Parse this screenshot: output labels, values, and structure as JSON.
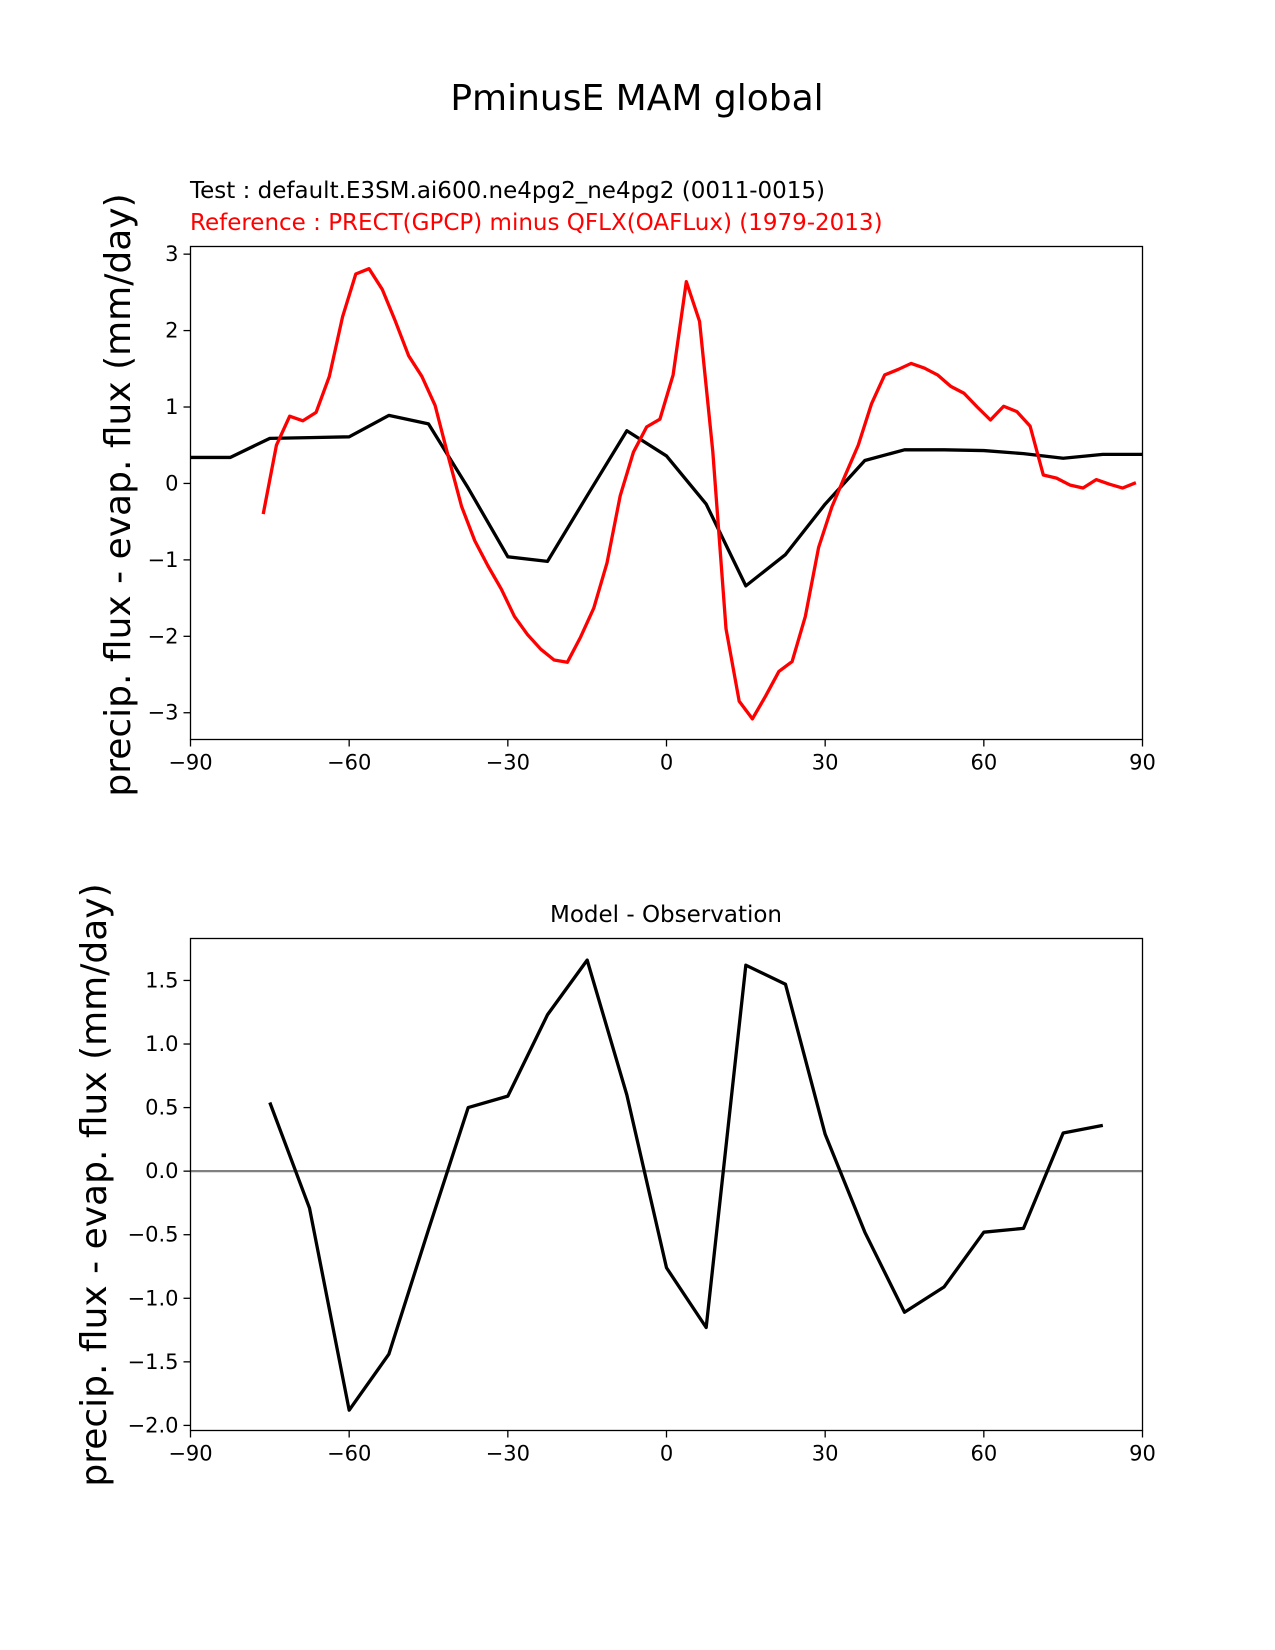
{
  "figure": {
    "title": "PminusE MAM global",
    "ylabel": "precip. flux - evap. flux (mm/day)"
  },
  "chart_data": [
    {
      "type": "line",
      "test_label": "Test : default.E3SM.ai600.ne4pg2_ne4pg2 (0011-0015)",
      "reference_label": "Reference : PRECT(GPCP) minus QFLX(OAFLux) (1979-2013)",
      "xlabel": "",
      "ylabel": "precip. flux - evap. flux (mm/day)",
      "xlim": [
        -90,
        90
      ],
      "ylim": [
        -3.35,
        3.1
      ],
      "xticks": [
        -90,
        -60,
        -30,
        0,
        30,
        60,
        90
      ],
      "yticks": [
        -3,
        -2,
        -1,
        0,
        1,
        2,
        3
      ],
      "colors": {
        "test": "#000000",
        "reference": "#ff0000"
      },
      "series": [
        {
          "role": "test",
          "x": [
            -90,
            -82.5,
            -75,
            -67.5,
            -60,
            -52.5,
            -45,
            -37.5,
            -30,
            -22.5,
            -15,
            -7.5,
            0,
            7.5,
            15,
            22.5,
            30,
            37.5,
            45,
            52.5,
            60,
            67.5,
            75,
            82.5,
            90
          ],
          "y": [
            0.34,
            0.34,
            0.59,
            0.6,
            0.61,
            0.89,
            0.78,
            -0.06,
            -0.96,
            -1.02,
            -0.16,
            0.69,
            0.36,
            -0.27,
            -1.34,
            -0.93,
            -0.27,
            0.3,
            0.44,
            0.44,
            0.43,
            0.39,
            0.33,
            0.38,
            0.38
          ]
        },
        {
          "role": "reference",
          "x": [
            -76.25,
            -73.75,
            -71.25,
            -68.75,
            -66.25,
            -63.75,
            -61.25,
            -58.75,
            -56.25,
            -53.75,
            -51.25,
            -48.75,
            -46.25,
            -43.75,
            -41.25,
            -38.75,
            -36.25,
            -33.75,
            -31.25,
            -28.75,
            -26.25,
            -23.75,
            -21.25,
            -18.75,
            -16.25,
            -13.75,
            -11.25,
            -8.75,
            -6.25,
            -3.75,
            -1.25,
            1.25,
            3.75,
            6.25,
            8.75,
            11.25,
            13.75,
            16.25,
            18.75,
            21.25,
            23.75,
            26.25,
            28.75,
            31.25,
            33.75,
            36.25,
            38.75,
            41.25,
            43.75,
            46.25,
            48.75,
            51.25,
            53.75,
            56.25,
            58.75,
            61.25,
            63.75,
            66.25,
            68.75,
            71.25,
            73.75,
            76.25,
            78.75,
            81.25,
            83.75,
            86.25,
            88.75
          ],
          "y": [
            -0.4,
            0.5,
            0.88,
            0.82,
            0.93,
            1.4,
            2.18,
            2.74,
            2.81,
            2.54,
            2.12,
            1.67,
            1.4,
            1.02,
            0.35,
            -0.3,
            -0.75,
            -1.08,
            -1.38,
            -1.74,
            -1.98,
            -2.17,
            -2.31,
            -2.34,
            -2.01,
            -1.63,
            -1.04,
            -0.16,
            0.41,
            0.74,
            0.84,
            1.42,
            2.64,
            2.12,
            0.42,
            -1.9,
            -2.85,
            -3.08,
            -2.78,
            -2.46,
            -2.33,
            -1.74,
            -0.84,
            -0.31,
            0.1,
            0.5,
            1.04,
            1.42,
            1.49,
            1.57,
            1.51,
            1.42,
            1.27,
            1.18,
            1.0,
            0.83,
            1.01,
            0.94,
            0.75,
            0.11,
            0.07,
            -0.02,
            -0.06,
            0.05,
            -0.01,
            -0.06,
            0.01
          ]
        }
      ]
    },
    {
      "type": "line",
      "title": "Model - Observation",
      "xlabel": "",
      "ylabel": "precip. flux - evap. flux (mm/day)",
      "xlim": [
        -90,
        90
      ],
      "ylim": [
        -2.04,
        1.83
      ],
      "xticks": [
        -90,
        -60,
        -30,
        0,
        30,
        60,
        90
      ],
      "yticks": [
        -2.0,
        -1.5,
        -1.0,
        -0.5,
        0.0,
        0.5,
        1.0,
        1.5
      ],
      "ytick_labels": [
        "−2.0",
        "−1.5",
        "−1.0",
        "−0.5",
        "0.0",
        "0.5",
        "1.0",
        "1.5"
      ],
      "zero_line": 0.0,
      "colors": {
        "diff": "#000000",
        "zero_line": "#808080"
      },
      "series": [
        {
          "role": "diff",
          "x": [
            -75,
            -67.5,
            -60,
            -52.5,
            -45,
            -37.5,
            -30,
            -22.5,
            -15,
            -7.5,
            0,
            7.5,
            15,
            22.5,
            30,
            37.5,
            45,
            52.5,
            60,
            67.5,
            75,
            82.5
          ],
          "y": [
            0.54,
            -0.29,
            -1.88,
            -1.44,
            -0.46,
            0.5,
            0.59,
            1.23,
            1.66,
            0.6,
            -0.76,
            -1.23,
            1.62,
            1.47,
            0.29,
            -0.48,
            -1.11,
            -0.91,
            -0.48,
            -0.45,
            0.3,
            0.36
          ]
        }
      ]
    }
  ]
}
